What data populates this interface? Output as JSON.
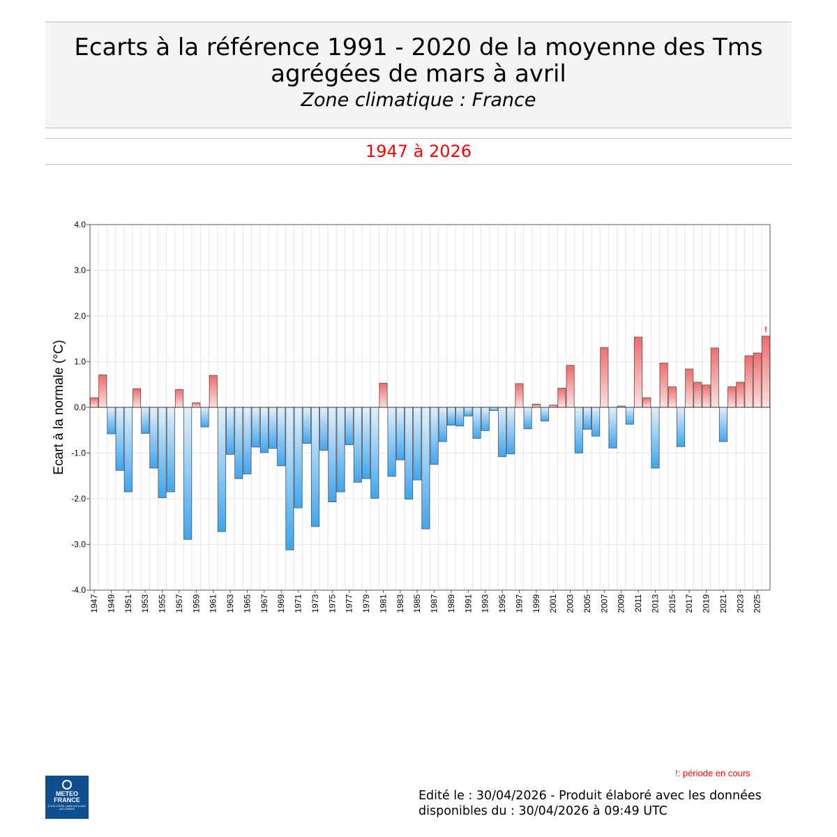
{
  "header": {
    "title_line1": "Ecarts à la référence 1991 - 2020 de la moyenne des Tms",
    "title_line2": "agrégées de mars à avril",
    "subtitle": "Zone climatique : France",
    "period": "1947 à 2026"
  },
  "footer": {
    "in_progress_note": "!: période en cours",
    "edited_line1": "Edité le : 30/04/2026 - Produit élaboré avec les données",
    "edited_line2": "disponibles du : 30/04/2026 à 09:49 UTC",
    "logo_line1": "METEO",
    "logo_line2": "FRANCE",
    "logo_tagline": "À VOS CÔTÉS, DANS UN CLIMAT QUI CHANGE"
  },
  "colors": {
    "positive_light": "#fde0e0",
    "positive_dark": "#f26b6b",
    "negative_light": "#e2f0fb",
    "negative_dark": "#3da6f2",
    "marker": "#ff0000"
  },
  "chart_data": {
    "type": "bar",
    "ylabel": "Ecart à la normale (°C)",
    "ylim": [
      -4.0,
      4.0
    ],
    "yticks": [
      -4.0,
      -3.0,
      -2.0,
      -1.0,
      0.0,
      1.0,
      2.0,
      3.0,
      4.0
    ],
    "grid": true,
    "in_progress_marker": "!",
    "in_progress_year": "2026",
    "x": [
      "1947",
      "1948",
      "1949",
      "1950",
      "1951",
      "1952",
      "1953",
      "1954",
      "1955",
      "1956",
      "1957",
      "1958",
      "1959",
      "1960",
      "1961",
      "1962",
      "1963",
      "1964",
      "1965",
      "1966",
      "1967",
      "1968",
      "1969",
      "1970",
      "1971",
      "1972",
      "1973",
      "1974",
      "1975",
      "1976",
      "1977",
      "1978",
      "1979",
      "1980",
      "1981",
      "1982",
      "1983",
      "1984",
      "1985",
      "1986",
      "1987",
      "1988",
      "1989",
      "1990",
      "1991",
      "1992",
      "1993",
      "1994",
      "1995",
      "1996",
      "1997",
      "1998",
      "1999",
      "2000",
      "2001",
      "2002",
      "2003",
      "2004",
      "2005",
      "2006",
      "2007",
      "2008",
      "2009",
      "2010",
      "2011",
      "2012",
      "2013",
      "2014",
      "2015",
      "2016",
      "2017",
      "2018",
      "2019",
      "2020",
      "2021",
      "2022",
      "2023",
      "2024",
      "2025",
      "2026"
    ],
    "values": [
      0.21,
      0.71,
      -0.58,
      -1.38,
      -1.85,
      0.41,
      -0.57,
      -1.33,
      -1.98,
      -1.85,
      0.39,
      -2.89,
      0.1,
      -0.43,
      0.7,
      -2.72,
      -1.03,
      -1.56,
      -1.46,
      -0.87,
      -0.99,
      -0.9,
      -1.28,
      -3.12,
      -2.2,
      -0.79,
      -2.61,
      -0.94,
      -2.07,
      -1.85,
      -0.82,
      -1.64,
      -1.56,
      -1.99,
      0.53,
      -1.51,
      -1.15,
      -2.01,
      -1.59,
      -2.66,
      -1.25,
      -0.75,
      -0.39,
      -0.41,
      -0.19,
      -0.68,
      -0.51,
      -0.07,
      -1.08,
      -1.02,
      0.52,
      -0.47,
      0.07,
      -0.3,
      0.05,
      0.42,
      0.92,
      -1.0,
      -0.48,
      -0.63,
      1.31,
      -0.89,
      0.03,
      -0.37,
      1.54,
      0.21,
      -1.33,
      0.97,
      0.45,
      -0.86,
      0.84,
      0.55,
      0.49,
      1.3,
      -0.75,
      0.45,
      0.55,
      1.13,
      1.19,
      1.56
    ],
    "xtick_labels": [
      "1947",
      "1949",
      "1951",
      "1953",
      "1955",
      "1957",
      "1959",
      "1961",
      "1963",
      "1965",
      "1967",
      "1969",
      "1971",
      "1973",
      "1975",
      "1977",
      "1979",
      "1981",
      "1983",
      "1985",
      "1987",
      "1989",
      "1991",
      "1993",
      "1995",
      "1997",
      "1999",
      "2001",
      "2003",
      "2005",
      "2007",
      "2009",
      "2011",
      "2013",
      "2015",
      "2017",
      "2019",
      "2021",
      "2023",
      "2025"
    ]
  }
}
